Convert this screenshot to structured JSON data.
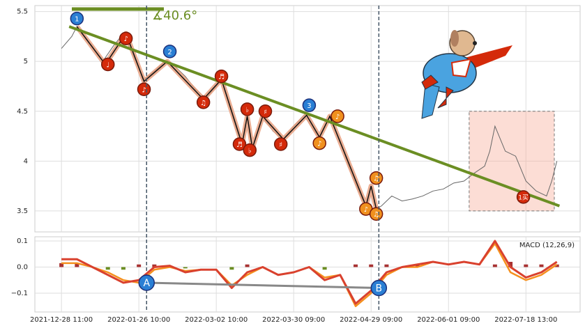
{
  "chart_data": [
    {
      "type": "line",
      "angle_label": "∡40.6°",
      "xlim": [
        -10.3,
        201
      ],
      "ylim": [
        3.29,
        5.56
      ],
      "yticks": [
        3.5,
        4.0,
        4.5,
        5.0,
        5.5
      ],
      "grid": true,
      "series": [
        {
          "color": "#666666",
          "x": [
            0,
            4,
            6,
            8,
            12,
            16,
            20,
            24,
            28,
            32,
            36,
            40,
            44,
            48,
            52,
            56,
            60,
            62,
            64,
            68,
            70,
            72,
            74,
            78,
            82,
            86,
            90,
            94,
            98,
            100,
            104,
            108,
            112,
            116,
            118,
            120,
            122,
            124,
            128,
            132,
            136,
            140,
            144,
            148,
            152,
            156,
            160,
            164,
            166,
            168,
            172,
            176,
            180,
            184,
            188,
            190,
            192
          ],
          "values": [
            5.13,
            5.25,
            5.35,
            5.28,
            5.15,
            5.0,
            5.15,
            5.28,
            5.05,
            4.82,
            4.9,
            5.0,
            4.95,
            4.85,
            4.72,
            4.63,
            4.75,
            4.82,
            4.65,
            4.3,
            4.17,
            4.45,
            4.15,
            4.45,
            4.3,
            4.22,
            4.35,
            4.46,
            4.3,
            4.24,
            4.45,
            4.2,
            3.9,
            3.65,
            3.55,
            3.75,
            3.52,
            3.55,
            3.65,
            3.6,
            3.62,
            3.65,
            3.7,
            3.72,
            3.78,
            3.8,
            3.88,
            3.95,
            4.1,
            4.35,
            4.1,
            4.05,
            3.8,
            3.7,
            3.65,
            3.8,
            4.0
          ]
        }
      ],
      "wave": {
        "x": [
          6,
          17,
          25,
          32,
          41,
          55,
          62,
          70,
          72,
          74,
          78,
          86,
          95,
          100,
          104,
          118,
          120,
          122
        ],
        "values": [
          5.35,
          4.97,
          5.28,
          4.8,
          5.0,
          4.62,
          4.82,
          4.17,
          4.45,
          4.13,
          4.45,
          4.22,
          4.46,
          4.24,
          4.45,
          3.55,
          3.75,
          3.52
        ]
      },
      "trend": {
        "x": [
          3,
          193
        ],
        "values": [
          5.35,
          3.55
        ],
        "color": "#6b8e23"
      },
      "box": {
        "x": [
          158,
          191
        ],
        "y": [
          3.5,
          4.5
        ]
      },
      "annotations": [
        {
          "x": 6,
          "y": 5.43,
          "label": "1",
          "color": "#2a7fd4"
        },
        {
          "x": 18,
          "y": 4.97,
          "label": "♩",
          "color": "#d42a0a"
        },
        {
          "x": 25,
          "y": 5.23,
          "label": "♪",
          "color": "#d42a0a"
        },
        {
          "x": 42,
          "y": 5.1,
          "label": "2",
          "color": "#2a7fd4"
        },
        {
          "x": 32,
          "y": 4.72,
          "label": "♪",
          "color": "#d42a0a"
        },
        {
          "x": 55,
          "y": 4.59,
          "label": "♫",
          "color": "#d42a0a"
        },
        {
          "x": 62,
          "y": 4.85,
          "label": "♬",
          "color": "#d42a0a"
        },
        {
          "x": 72,
          "y": 4.52,
          "label": "♭",
          "color": "#d42a0a"
        },
        {
          "x": 69,
          "y": 4.17,
          "label": "♬",
          "color": "#d42a0a"
        },
        {
          "x": 73,
          "y": 4.11,
          "label": "♭",
          "color": "#d42a0a"
        },
        {
          "x": 79,
          "y": 4.5,
          "label": "♯",
          "color": "#d42a0a"
        },
        {
          "x": 85,
          "y": 4.17,
          "label": "♯",
          "color": "#d42a0a"
        },
        {
          "x": 96,
          "y": 4.56,
          "label": "3",
          "color": "#2a7fd4"
        },
        {
          "x": 107,
          "y": 4.45,
          "label": "♪",
          "color": "#f0901e"
        },
        {
          "x": 100,
          "y": 4.18,
          "label": "♪",
          "color": "#f0901e"
        },
        {
          "x": 122,
          "y": 3.83,
          "label": "♫",
          "color": "#f0901e"
        },
        {
          "x": 118,
          "y": 3.52,
          "label": "♪",
          "color": "#f0901e"
        },
        {
          "x": 122,
          "y": 3.47,
          "label": "♫",
          "color": "#f0901e"
        },
        {
          "x": 179,
          "y": 3.64,
          "label": "1买",
          "color": "#d42a0a"
        }
      ]
    },
    {
      "type": "macd",
      "title": "MACD (12,26,9)",
      "xlim": [
        -10.3,
        201
      ],
      "ylim": [
        -0.172,
        0.116
      ],
      "yticks": [
        {
          "value": -0.1,
          "label": "−0.1"
        },
        {
          "value": 0,
          "label": "0.0"
        },
        0.1
      ],
      "xticks": [
        {
          "value": 0,
          "label": "2021-12-28 11:00"
        },
        {
          "value": 30,
          "label": "2022-01-26 10:00"
        },
        {
          "value": 60,
          "label": "2022-03-02 10:00"
        },
        {
          "value": 90,
          "label": "2022-03-30 09:00"
        },
        {
          "value": 120,
          "label": "2022-04-29 09:00"
        },
        {
          "value": 150,
          "label": "2022-06-01 09:00"
        },
        {
          "value": 180,
          "label": "2022-07-18 13:00"
        }
      ],
      "x": [
        0,
        6,
        12,
        18,
        24,
        30,
        36,
        42,
        48,
        54,
        60,
        66,
        72,
        78,
        84,
        90,
        96,
        102,
        108,
        114,
        120,
        126,
        132,
        138,
        144,
        150,
        156,
        162,
        168,
        174,
        180,
        186,
        192
      ],
      "series": [
        {
          "color": "#d9412e",
          "values": [
            0.03,
            0.03,
            0.0,
            -0.03,
            -0.06,
            -0.05,
            0.0,
            0.005,
            -0.02,
            -0.01,
            -0.01,
            -0.08,
            -0.02,
            0.0,
            -0.03,
            -0.02,
            0.0,
            -0.05,
            -0.03,
            -0.14,
            -0.09,
            -0.02,
            0.0,
            0.01,
            0.02,
            0.01,
            0.02,
            0.01,
            0.1,
            0.0,
            -0.04,
            -0.02,
            0.02
          ]
        },
        {
          "color": "#f5901e",
          "values": [
            0.015,
            0.015,
            0,
            -0.02,
            -0.05,
            -0.06,
            -0.01,
            0,
            -0.015,
            -0.01,
            -0.01,
            -0.07,
            -0.03,
            0,
            -0.03,
            -0.02,
            0,
            -0.04,
            -0.03,
            -0.15,
            -0.1,
            -0.03,
            0,
            0,
            0.02,
            0.01,
            0.02,
            0.01,
            0.09,
            -0.02,
            -0.05,
            -0.03,
            0.01
          ]
        }
      ],
      "hist": [
        0.015,
        0.015,
        0,
        -0.01,
        -0.01,
        0.01,
        0.01,
        0.005,
        -0.005,
        0,
        0,
        -0.01,
        0.01,
        0,
        0,
        0,
        0,
        -0.01,
        0,
        0.01,
        0.01,
        0.01,
        0,
        0.01,
        0,
        0,
        0,
        0,
        0.01,
        0.02,
        0.01,
        0.01,
        0.01
      ],
      "hist_colors": [
        "#a83232",
        "#6b8e23"
      ],
      "markers": [
        {
          "x": 33,
          "value": -0.06,
          "label": "A"
        },
        {
          "x": 123,
          "value": -0.08,
          "label": "B"
        }
      ]
    }
  ]
}
